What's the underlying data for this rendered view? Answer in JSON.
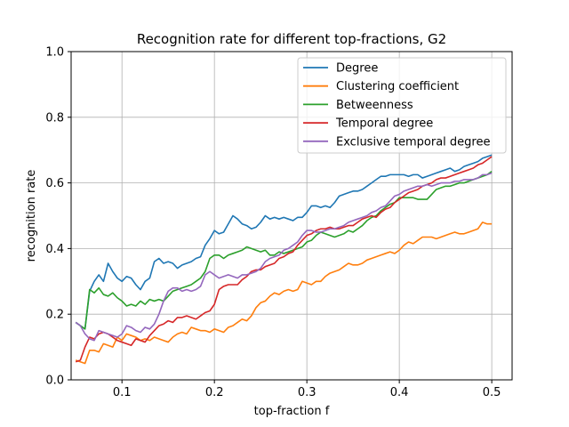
{
  "chart_data": {
    "type": "line",
    "title": "Recognition rate for different top-fractions, G2",
    "xlabel": "top-fraction f",
    "ylabel": "recognition rate",
    "xlim": [
      0.045,
      0.522
    ],
    "ylim": [
      0.0,
      1.0
    ],
    "xticks": [
      0.1,
      0.2,
      0.3,
      0.4,
      0.5
    ],
    "xtick_labels": [
      "0.1",
      "0.2",
      "0.3",
      "0.4",
      "0.5"
    ],
    "yticks": [
      0.0,
      0.2,
      0.4,
      0.6,
      0.8,
      1.0
    ],
    "ytick_labels": [
      "0.0",
      "0.2",
      "0.4",
      "0.6",
      "0.8",
      "1.0"
    ],
    "grid": true,
    "legend_position": "top-right",
    "series": [
      {
        "name": "Degree",
        "color": "#1f77b4",
        "x": [
          0.05,
          0.055,
          0.06,
          0.065,
          0.07,
          0.075,
          0.08,
          0.085,
          0.09,
          0.095,
          0.1,
          0.105,
          0.11,
          0.115,
          0.12,
          0.125,
          0.13,
          0.135,
          0.14,
          0.145,
          0.15,
          0.155,
          0.16,
          0.165,
          0.17,
          0.175,
          0.18,
          0.185,
          0.19,
          0.195,
          0.2,
          0.205,
          0.21,
          0.215,
          0.22,
          0.225,
          0.23,
          0.235,
          0.24,
          0.245,
          0.25,
          0.255,
          0.26,
          0.265,
          0.27,
          0.275,
          0.28,
          0.285,
          0.29,
          0.295,
          0.3,
          0.305,
          0.31,
          0.315,
          0.32,
          0.325,
          0.33,
          0.335,
          0.34,
          0.345,
          0.35,
          0.355,
          0.36,
          0.365,
          0.37,
          0.375,
          0.38,
          0.385,
          0.39,
          0.395,
          0.4,
          0.405,
          0.41,
          0.415,
          0.42,
          0.425,
          0.43,
          0.435,
          0.44,
          0.445,
          0.45,
          0.455,
          0.46,
          0.465,
          0.47,
          0.475,
          0.48,
          0.485,
          0.49,
          0.495,
          0.5
        ],
        "y": [
          0.175,
          0.165,
          0.155,
          0.27,
          0.3,
          0.32,
          0.3,
          0.355,
          0.33,
          0.31,
          0.3,
          0.315,
          0.31,
          0.29,
          0.275,
          0.3,
          0.31,
          0.36,
          0.37,
          0.355,
          0.36,
          0.355,
          0.34,
          0.35,
          0.355,
          0.36,
          0.37,
          0.375,
          0.41,
          0.43,
          0.455,
          0.445,
          0.45,
          0.475,
          0.5,
          0.49,
          0.475,
          0.47,
          0.46,
          0.465,
          0.48,
          0.5,
          0.49,
          0.495,
          0.49,
          0.495,
          0.49,
          0.485,
          0.495,
          0.495,
          0.51,
          0.53,
          0.53,
          0.525,
          0.53,
          0.525,
          0.54,
          0.56,
          0.565,
          0.57,
          0.575,
          0.575,
          0.58,
          0.59,
          0.6,
          0.61,
          0.62,
          0.62,
          0.625,
          0.625,
          0.625,
          0.625,
          0.62,
          0.625,
          0.625,
          0.615,
          0.62,
          0.625,
          0.63,
          0.635,
          0.64,
          0.645,
          0.635,
          0.64,
          0.65,
          0.655,
          0.66,
          0.665,
          0.675,
          0.68,
          0.685
        ]
      },
      {
        "name": "Clustering coefficient",
        "color": "#ff7f0e",
        "x": [
          0.05,
          0.055,
          0.06,
          0.065,
          0.07,
          0.075,
          0.08,
          0.085,
          0.09,
          0.095,
          0.1,
          0.105,
          0.11,
          0.115,
          0.12,
          0.125,
          0.13,
          0.135,
          0.14,
          0.145,
          0.15,
          0.155,
          0.16,
          0.165,
          0.17,
          0.175,
          0.18,
          0.185,
          0.19,
          0.195,
          0.2,
          0.205,
          0.21,
          0.215,
          0.22,
          0.225,
          0.23,
          0.235,
          0.24,
          0.245,
          0.25,
          0.255,
          0.26,
          0.265,
          0.27,
          0.275,
          0.28,
          0.285,
          0.29,
          0.295,
          0.3,
          0.305,
          0.31,
          0.315,
          0.32,
          0.325,
          0.33,
          0.335,
          0.34,
          0.345,
          0.35,
          0.355,
          0.36,
          0.365,
          0.37,
          0.375,
          0.38,
          0.385,
          0.39,
          0.395,
          0.4,
          0.405,
          0.41,
          0.415,
          0.42,
          0.425,
          0.43,
          0.435,
          0.44,
          0.445,
          0.45,
          0.455,
          0.46,
          0.465,
          0.47,
          0.475,
          0.48,
          0.485,
          0.49,
          0.495,
          0.5
        ],
        "y": [
          0.06,
          0.055,
          0.05,
          0.09,
          0.09,
          0.085,
          0.11,
          0.105,
          0.1,
          0.13,
          0.12,
          0.14,
          0.135,
          0.13,
          0.12,
          0.125,
          0.12,
          0.13,
          0.125,
          0.12,
          0.115,
          0.13,
          0.14,
          0.145,
          0.14,
          0.16,
          0.155,
          0.15,
          0.15,
          0.145,
          0.155,
          0.15,
          0.145,
          0.16,
          0.165,
          0.175,
          0.185,
          0.18,
          0.195,
          0.22,
          0.235,
          0.24,
          0.255,
          0.265,
          0.26,
          0.27,
          0.275,
          0.27,
          0.275,
          0.3,
          0.295,
          0.29,
          0.3,
          0.3,
          0.315,
          0.325,
          0.33,
          0.335,
          0.345,
          0.355,
          0.35,
          0.35,
          0.355,
          0.365,
          0.37,
          0.375,
          0.38,
          0.385,
          0.39,
          0.385,
          0.395,
          0.41,
          0.42,
          0.415,
          0.425,
          0.435,
          0.435,
          0.435,
          0.43,
          0.435,
          0.44,
          0.445,
          0.45,
          0.445,
          0.445,
          0.45,
          0.455,
          0.46,
          0.48,
          0.475,
          0.475
        ]
      },
      {
        "name": "Betweenness",
        "color": "#2ca02c",
        "x": [
          0.05,
          0.055,
          0.06,
          0.065,
          0.07,
          0.075,
          0.08,
          0.085,
          0.09,
          0.095,
          0.1,
          0.105,
          0.11,
          0.115,
          0.12,
          0.125,
          0.13,
          0.135,
          0.14,
          0.145,
          0.15,
          0.155,
          0.16,
          0.165,
          0.17,
          0.175,
          0.18,
          0.185,
          0.19,
          0.195,
          0.2,
          0.205,
          0.21,
          0.215,
          0.22,
          0.225,
          0.23,
          0.235,
          0.24,
          0.245,
          0.25,
          0.255,
          0.26,
          0.265,
          0.27,
          0.275,
          0.28,
          0.285,
          0.29,
          0.295,
          0.3,
          0.305,
          0.31,
          0.315,
          0.32,
          0.325,
          0.33,
          0.335,
          0.34,
          0.345,
          0.35,
          0.355,
          0.36,
          0.365,
          0.37,
          0.375,
          0.38,
          0.385,
          0.39,
          0.395,
          0.4,
          0.405,
          0.41,
          0.415,
          0.42,
          0.425,
          0.43,
          0.435,
          0.44,
          0.445,
          0.45,
          0.455,
          0.46,
          0.465,
          0.47,
          0.475,
          0.48,
          0.485,
          0.49,
          0.495,
          0.5
        ],
        "y": [
          0.175,
          0.165,
          0.155,
          0.275,
          0.265,
          0.28,
          0.26,
          0.255,
          0.265,
          0.25,
          0.24,
          0.225,
          0.23,
          0.225,
          0.24,
          0.23,
          0.245,
          0.24,
          0.245,
          0.24,
          0.255,
          0.27,
          0.275,
          0.28,
          0.285,
          0.29,
          0.3,
          0.31,
          0.33,
          0.37,
          0.38,
          0.38,
          0.37,
          0.38,
          0.385,
          0.39,
          0.395,
          0.405,
          0.4,
          0.395,
          0.39,
          0.395,
          0.38,
          0.38,
          0.39,
          0.385,
          0.39,
          0.395,
          0.4,
          0.405,
          0.42,
          0.425,
          0.44,
          0.45,
          0.445,
          0.44,
          0.435,
          0.44,
          0.445,
          0.455,
          0.45,
          0.46,
          0.47,
          0.485,
          0.495,
          0.5,
          0.515,
          0.525,
          0.535,
          0.54,
          0.555,
          0.555,
          0.555,
          0.555,
          0.55,
          0.55,
          0.55,
          0.565,
          0.58,
          0.585,
          0.59,
          0.59,
          0.595,
          0.6,
          0.6,
          0.605,
          0.61,
          0.615,
          0.62,
          0.625,
          0.635
        ]
      },
      {
        "name": "Temporal degree",
        "color": "#d62728",
        "x": [
          0.05,
          0.055,
          0.06,
          0.065,
          0.07,
          0.075,
          0.08,
          0.085,
          0.09,
          0.095,
          0.1,
          0.105,
          0.11,
          0.115,
          0.12,
          0.125,
          0.13,
          0.135,
          0.14,
          0.145,
          0.15,
          0.155,
          0.16,
          0.165,
          0.17,
          0.175,
          0.18,
          0.185,
          0.19,
          0.195,
          0.2,
          0.205,
          0.21,
          0.215,
          0.22,
          0.225,
          0.23,
          0.235,
          0.24,
          0.245,
          0.25,
          0.255,
          0.26,
          0.265,
          0.27,
          0.275,
          0.28,
          0.285,
          0.29,
          0.295,
          0.3,
          0.305,
          0.31,
          0.315,
          0.32,
          0.325,
          0.33,
          0.335,
          0.34,
          0.345,
          0.35,
          0.355,
          0.36,
          0.365,
          0.37,
          0.375,
          0.38,
          0.385,
          0.39,
          0.395,
          0.4,
          0.405,
          0.41,
          0.415,
          0.42,
          0.425,
          0.43,
          0.435,
          0.44,
          0.445,
          0.45,
          0.455,
          0.46,
          0.465,
          0.47,
          0.475,
          0.48,
          0.485,
          0.49,
          0.495,
          0.5
        ],
        "y": [
          0.055,
          0.06,
          0.1,
          0.13,
          0.125,
          0.14,
          0.145,
          0.14,
          0.13,
          0.12,
          0.115,
          0.11,
          0.105,
          0.125,
          0.12,
          0.115,
          0.135,
          0.15,
          0.165,
          0.17,
          0.18,
          0.175,
          0.19,
          0.19,
          0.195,
          0.19,
          0.185,
          0.195,
          0.205,
          0.21,
          0.23,
          0.275,
          0.285,
          0.29,
          0.29,
          0.29,
          0.305,
          0.315,
          0.33,
          0.335,
          0.335,
          0.345,
          0.35,
          0.355,
          0.37,
          0.375,
          0.385,
          0.39,
          0.41,
          0.425,
          0.44,
          0.445,
          0.455,
          0.46,
          0.46,
          0.465,
          0.46,
          0.46,
          0.465,
          0.47,
          0.47,
          0.48,
          0.49,
          0.495,
          0.5,
          0.495,
          0.51,
          0.52,
          0.525,
          0.54,
          0.55,
          0.56,
          0.57,
          0.575,
          0.58,
          0.59,
          0.595,
          0.6,
          0.61,
          0.615,
          0.615,
          0.62,
          0.625,
          0.63,
          0.635,
          0.64,
          0.645,
          0.655,
          0.66,
          0.67,
          0.68
        ]
      },
      {
        "name": "Exclusive temporal degree",
        "color": "#9467bd",
        "x": [
          0.05,
          0.055,
          0.06,
          0.065,
          0.07,
          0.075,
          0.08,
          0.085,
          0.09,
          0.095,
          0.1,
          0.105,
          0.11,
          0.115,
          0.12,
          0.125,
          0.13,
          0.135,
          0.14,
          0.145,
          0.15,
          0.155,
          0.16,
          0.165,
          0.17,
          0.175,
          0.18,
          0.185,
          0.19,
          0.195,
          0.2,
          0.205,
          0.21,
          0.215,
          0.22,
          0.225,
          0.23,
          0.235,
          0.24,
          0.245,
          0.25,
          0.255,
          0.26,
          0.265,
          0.27,
          0.275,
          0.28,
          0.285,
          0.29,
          0.295,
          0.3,
          0.305,
          0.31,
          0.315,
          0.32,
          0.325,
          0.33,
          0.335,
          0.34,
          0.345,
          0.35,
          0.355,
          0.36,
          0.365,
          0.37,
          0.375,
          0.38,
          0.385,
          0.39,
          0.395,
          0.4,
          0.405,
          0.41,
          0.415,
          0.42,
          0.425,
          0.43,
          0.435,
          0.44,
          0.445,
          0.45,
          0.455,
          0.46,
          0.465,
          0.47,
          0.475,
          0.48,
          0.485,
          0.49,
          0.495,
          0.5
        ],
        "y": [
          0.175,
          0.165,
          0.14,
          0.125,
          0.12,
          0.15,
          0.145,
          0.14,
          0.135,
          0.13,
          0.14,
          0.165,
          0.16,
          0.15,
          0.145,
          0.16,
          0.155,
          0.17,
          0.2,
          0.24,
          0.27,
          0.28,
          0.28,
          0.27,
          0.275,
          0.27,
          0.275,
          0.285,
          0.32,
          0.33,
          0.32,
          0.31,
          0.315,
          0.32,
          0.315,
          0.31,
          0.32,
          0.32,
          0.325,
          0.33,
          0.34,
          0.36,
          0.37,
          0.375,
          0.38,
          0.395,
          0.4,
          0.41,
          0.42,
          0.44,
          0.455,
          0.455,
          0.45,
          0.45,
          0.455,
          0.46,
          0.46,
          0.465,
          0.47,
          0.48,
          0.485,
          0.49,
          0.495,
          0.5,
          0.51,
          0.515,
          0.525,
          0.53,
          0.545,
          0.56,
          0.565,
          0.575,
          0.58,
          0.585,
          0.59,
          0.59,
          0.595,
          0.59,
          0.595,
          0.6,
          0.6,
          0.6,
          0.605,
          0.605,
          0.61,
          0.61,
          0.61,
          0.615,
          0.625,
          0.625,
          0.63
        ]
      }
    ]
  }
}
